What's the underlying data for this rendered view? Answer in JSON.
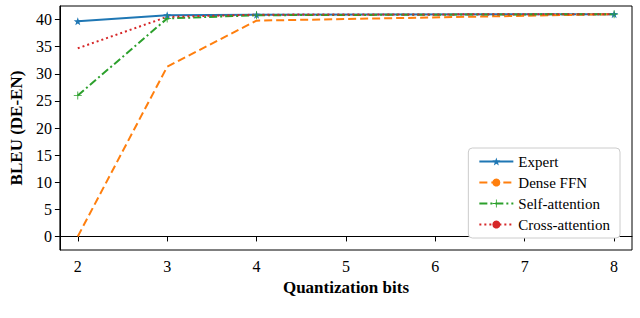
{
  "chart_data": {
    "type": "line",
    "x_label": "Quantization bits",
    "y_label": "BLEU (DE-EN)",
    "x": [
      2,
      3,
      4,
      8
    ],
    "series": [
      {
        "name": "Expert",
        "color": "#1f77b4",
        "line_style": "solid",
        "marker": "star",
        "values": [
          39.7,
          40.8,
          40.9,
          41.0
        ]
      },
      {
        "name": "Dense FFN",
        "color": "#ff7f0e",
        "line_style": "dashed",
        "marker": "none",
        "values": [
          0.0,
          31.3,
          39.8,
          41.0
        ]
      },
      {
        "name": "Self-attention",
        "color": "#2ca02c",
        "line_style": "dashdot",
        "marker": "plus",
        "values": [
          26.0,
          40.2,
          40.8,
          41.0
        ]
      },
      {
        "name": "Cross-attention",
        "color": "#d62728",
        "line_style": "dotted",
        "marker": "none",
        "values": [
          34.7,
          40.5,
          40.9,
          41.0
        ]
      }
    ],
    "xlim": [
      1.8,
      8.2
    ],
    "xticks": [
      2,
      3,
      4,
      5,
      6,
      7,
      8
    ],
    "ylim": [
      -2.5,
      42.5
    ],
    "yticks": [
      0,
      5,
      10,
      15,
      20,
      25,
      30,
      35,
      40
    ],
    "grid": false,
    "legend": "lower right"
  }
}
